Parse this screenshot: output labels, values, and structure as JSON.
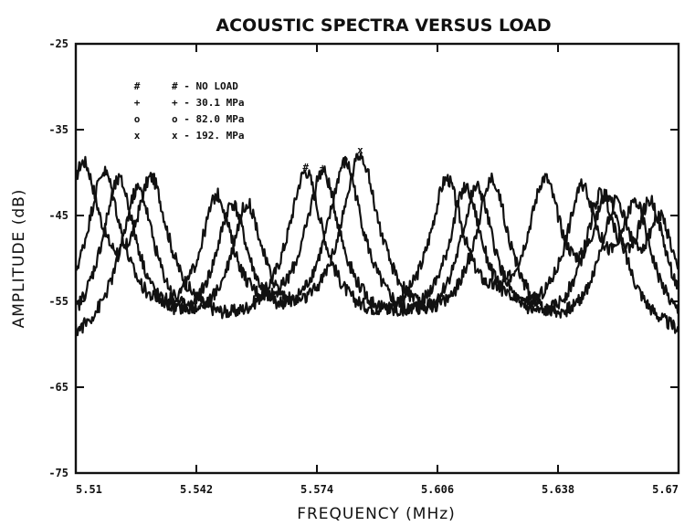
{
  "chart_data": {
    "type": "line",
    "title": "ACOUSTIC SPECTRA VERSUS LOAD",
    "xlabel": "FREQUENCY (MHz)",
    "ylabel": "AMPLITUDE (dB)",
    "xlim": [
      5.51,
      5.67
    ],
    "ylim": [
      -75,
      -25
    ],
    "x_ticks": [
      "5.51",
      "5.542",
      "5.574",
      "5.606",
      "5.638",
      "5.67"
    ],
    "y_ticks": [
      "-25",
      "-35",
      "-45",
      "-55",
      "-65",
      "-75"
    ],
    "legend_position": "top-left",
    "grid": false,
    "series": [
      {
        "name": "NO LOAD",
        "marker": "#",
        "legend_label": "# - NO LOAD",
        "peaks": [
          {
            "x": 5.512,
            "y": -39
          },
          {
            "x": 5.53,
            "y": -41
          },
          {
            "x": 5.571,
            "y": -40
          },
          {
            "x": 5.6085,
            "y": -41
          },
          {
            "x": 5.6345,
            "y": -41
          },
          {
            "x": 5.651,
            "y": -43
          }
        ],
        "baseline_db": -61
      },
      {
        "name": "30.1 MPa",
        "marker": "+",
        "legend_label": "+ - 30.1 MPa",
        "peaks": [
          {
            "x": 5.5175,
            "y": -40
          },
          {
            "x": 5.5475,
            "y": -43
          },
          {
            "x": 5.5755,
            "y": -40
          },
          {
            "x": 5.6135,
            "y": -42
          },
          {
            "x": 5.6445,
            "y": -42
          },
          {
            "x": 5.6585,
            "y": -44
          }
        ],
        "baseline_db": -61
      },
      {
        "name": "82.0 MPa",
        "marker": "o",
        "legend_label": "o - 82.0 MPa",
        "peaks": [
          {
            "x": 5.5215,
            "y": -41
          },
          {
            "x": 5.5515,
            "y": -44
          },
          {
            "x": 5.5815,
            "y": -39
          },
          {
            "x": 5.6165,
            "y": -42
          },
          {
            "x": 5.6495,
            "y": -43
          },
          {
            "x": 5.6625,
            "y": -44
          }
        ],
        "baseline_db": -62
      },
      {
        "name": "192. MPa",
        "marker": "x",
        "legend_label": "x - 192. MPa",
        "peaks": [
          {
            "x": 5.5265,
            "y": -42
          },
          {
            "x": 5.5555,
            "y": -44
          },
          {
            "x": 5.5855,
            "y": -38
          },
          {
            "x": 5.6205,
            "y": -41
          },
          {
            "x": 5.6535,
            "y": -44
          },
          {
            "x": 5.665,
            "y": -46
          }
        ],
        "baseline_db": -62
      }
    ]
  }
}
